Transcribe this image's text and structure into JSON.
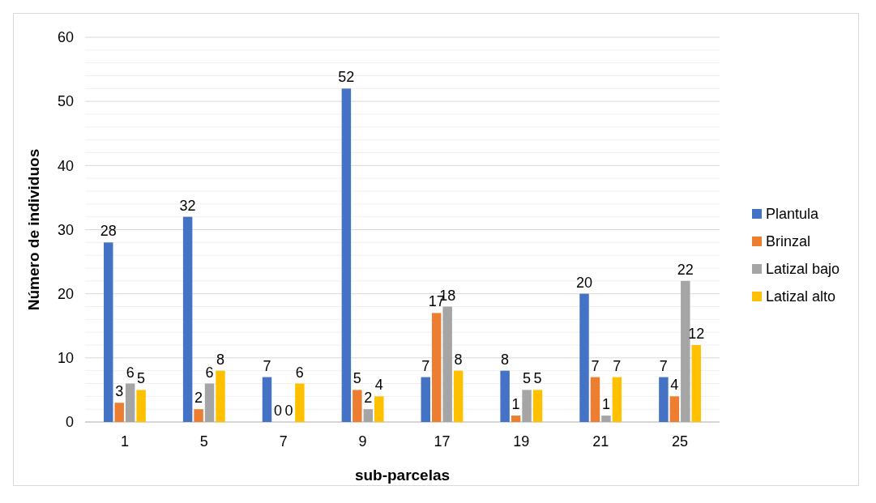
{
  "chart_data": {
    "type": "bar",
    "xlabel": "sub-parcelas",
    "ylabel": "Número de individuos",
    "categories": [
      "1",
      "5",
      "7",
      "9",
      "17",
      "19",
      "21",
      "25"
    ],
    "series": [
      {
        "name": "Plantula",
        "color": "#4472c4",
        "values": [
          28,
          32,
          7,
          52,
          7,
          8,
          20,
          7
        ]
      },
      {
        "name": "Brinzal",
        "color": "#ed7d31",
        "values": [
          3,
          2,
          0,
          5,
          17,
          1,
          7,
          4
        ]
      },
      {
        "name": "Latizal bajo",
        "color": "#a5a5a5",
        "values": [
          6,
          6,
          0,
          2,
          18,
          5,
          1,
          22
        ]
      },
      {
        "name": "Latizal alto",
        "color": "#ffc000",
        "values": [
          5,
          8,
          6,
          4,
          8,
          5,
          7,
          12
        ]
      }
    ],
    "ylim": [
      0,
      60
    ],
    "yticks": [
      0,
      {
        "value": 2,
        "label": null
      },
      {
        "value": 4,
        "label": null
      },
      {
        "value": 6,
        "label": null
      },
      {
        "value": 8,
        "label": null
      },
      10,
      {
        "value": 12,
        "label": null
      },
      {
        "value": 14,
        "label": null
      },
      {
        "value": 16,
        "label": null
      },
      {
        "value": 18,
        "label": null
      },
      20,
      {
        "value": 22,
        "label": null
      },
      {
        "value": 24,
        "label": null
      },
      {
        "value": 26,
        "label": null
      },
      {
        "value": 28,
        "label": null
      },
      30,
      {
        "value": 32,
        "label": null
      },
      {
        "value": 34,
        "label": null
      },
      {
        "value": 36,
        "label": null
      },
      {
        "value": 38,
        "label": null
      },
      40,
      {
        "value": 42,
        "label": null
      },
      {
        "value": 44,
        "label": null
      },
      {
        "value": 46,
        "label": null
      },
      {
        "value": 48,
        "label": null
      },
      50,
      {
        "value": 52,
        "label": null
      },
      {
        "value": 54,
        "label": null
      },
      {
        "value": 56,
        "label": null
      },
      {
        "value": 58,
        "label": null
      },
      60
    ],
    "grid": "y",
    "legend": "right",
    "data_labels": true
  }
}
